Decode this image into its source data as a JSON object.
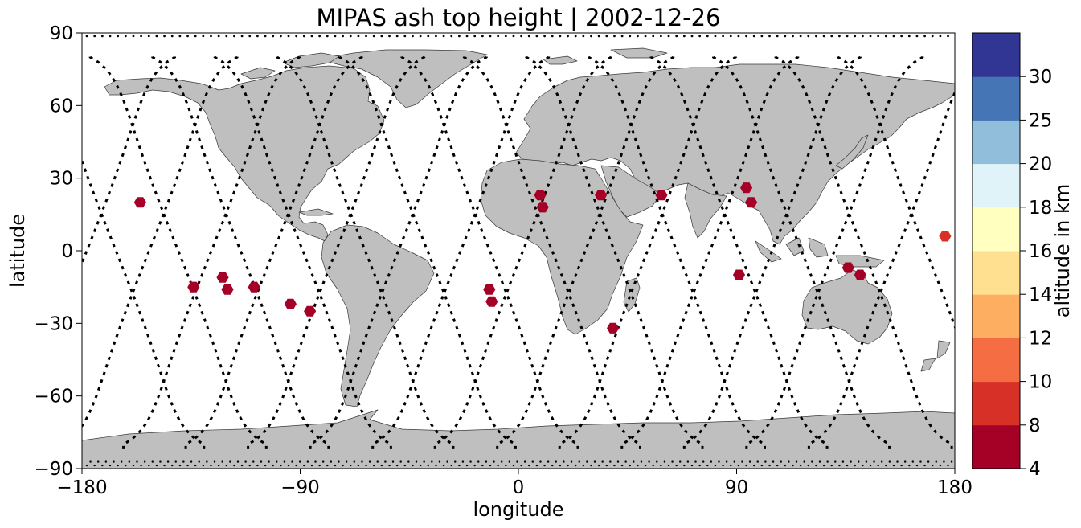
{
  "title": "MIPAS ash top height | 2002-12-26",
  "chart_data": {
    "type": "scatter",
    "title": "MIPAS ash top height | 2002-12-26",
    "xlabel": "longitude",
    "ylabel": "latitude",
    "xlim": [
      -180,
      180
    ],
    "ylim": [
      -90,
      90
    ],
    "xticks": [
      -180,
      -90,
      0,
      90,
      180
    ],
    "xtick_labels": [
      "−180",
      "−90",
      "0",
      "90",
      "180"
    ],
    "yticks": [
      -90,
      -60,
      -30,
      0,
      30,
      60,
      90
    ],
    "ytick_labels": [
      "−90",
      "−60",
      "−30",
      "0",
      "30",
      "60",
      "90"
    ],
    "grid": false,
    "background_map": "world coastlines, land filled grey",
    "land_color": "#bfbfbf",
    "orbit_track_color": "#000000",
    "series": [
      {
        "points": [
          {
            "lon": -156,
            "lat": 20,
            "alt": 6
          },
          {
            "lon": -134,
            "lat": -15,
            "alt": 6
          },
          {
            "lon": -122,
            "lat": -11,
            "alt": 6
          },
          {
            "lon": -120,
            "lat": -16,
            "alt": 6
          },
          {
            "lon": -109,
            "lat": -15,
            "alt": 6
          },
          {
            "lon": -94,
            "lat": -22,
            "alt": 6
          },
          {
            "lon": -86,
            "lat": -25,
            "alt": 6
          },
          {
            "lon": -12,
            "lat": -16,
            "alt": 6
          },
          {
            "lon": -11,
            "lat": -21,
            "alt": 6
          },
          {
            "lon": 9,
            "lat": 23,
            "alt": 6
          },
          {
            "lon": 10,
            "lat": 18,
            "alt": 6
          },
          {
            "lon": 34,
            "lat": 23,
            "alt": 6
          },
          {
            "lon": 39,
            "lat": -32,
            "alt": 6
          },
          {
            "lon": 59,
            "lat": 23,
            "alt": 6
          },
          {
            "lon": 91,
            "lat": -10,
            "alt": 6
          },
          {
            "lon": 94,
            "lat": 26,
            "alt": 6
          },
          {
            "lon": 96,
            "lat": 20,
            "alt": 6
          },
          {
            "lon": 136,
            "lat": -7,
            "alt": 6
          },
          {
            "lon": 141,
            "lat": -10,
            "alt": 6
          },
          {
            "lon": 176,
            "lat": 6,
            "alt": 9
          }
        ]
      }
    ],
    "colorbar": {
      "label": "altitude in km",
      "ticks": [
        "4",
        "8",
        "10",
        "12",
        "14",
        "16",
        "18",
        "20",
        "25",
        "30"
      ],
      "bins": [
        {
          "from": 4,
          "to": 8,
          "color": "#a50026"
        },
        {
          "from": 8,
          "to": 10,
          "color": "#d73027"
        },
        {
          "from": 10,
          "to": 12,
          "color": "#f46d43"
        },
        {
          "from": 12,
          "to": 14,
          "color": "#fdae61"
        },
        {
          "from": 14,
          "to": 16,
          "color": "#fee090"
        },
        {
          "from": 16,
          "to": 18,
          "color": "#ffffbf"
        },
        {
          "from": 18,
          "to": 20,
          "color": "#e0f3f8"
        },
        {
          "from": 20,
          "to": 25,
          "color": "#91bfdb"
        },
        {
          "from": 25,
          "to": 30,
          "color": "#4575b4"
        },
        {
          "from": 30,
          "to": 35,
          "color": "#313695"
        }
      ]
    }
  }
}
